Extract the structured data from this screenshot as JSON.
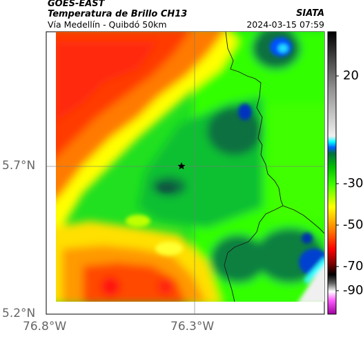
{
  "header": {
    "satellite": "GOES-EAST",
    "product": "Temperatura de Brillo CH13",
    "region": "Vía Medellín - Quibdó 50km",
    "source": "SIATA",
    "datetime": "2024-03-15 07:59"
  },
  "map": {
    "lat_ticks": [
      "5.7°N",
      "5.2°N"
    ],
    "lon_ticks": [
      "76.8°W",
      "76.3°W"
    ],
    "marker": "star-icon"
  },
  "colorbar": {
    "ticks": [
      "20",
      "-30",
      "-50",
      "-70",
      "-90"
    ],
    "colors": [
      "#000000",
      "#ffffff",
      "#00ffff",
      "#00a000",
      "#00ff00",
      "#ffff00",
      "#ff0000",
      "#000000",
      "#ff00ff"
    ]
  }
}
